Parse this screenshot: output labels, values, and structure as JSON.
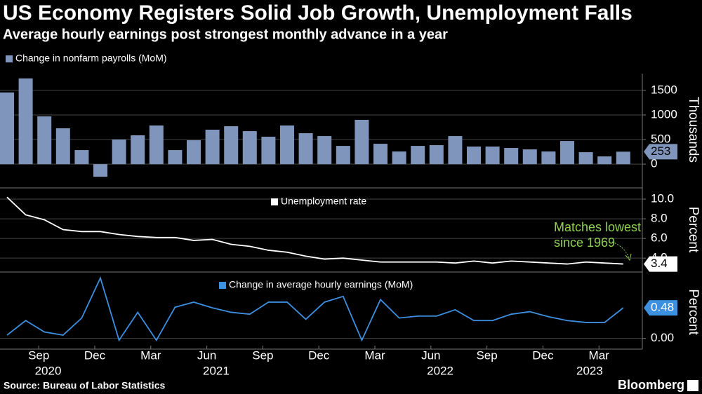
{
  "title": "US Economy Registers Solid Job Growth, Unemployment Falls",
  "subtitle": "Average hourly earnings post strongest monthly advance in a year",
  "source": "Source: Bureau of Labor Statistics",
  "brand": "Bloomberg",
  "chart_data": [
    {
      "type": "bar",
      "y_label": "Thousands",
      "series": [
        {
          "name": "Change in nonfarm payrolls (MoM)",
          "color": "#7f95bb",
          "values": [
            1457,
            1743,
            971,
            729,
            286,
            -257,
            500,
            586,
            786,
            286,
            486,
            700,
            771,
            671,
            557,
            786,
            629,
            571,
            371,
            900,
            414,
            257,
            371,
            386,
            571,
            357,
            357,
            329,
            300,
            257,
            471,
            243,
            157,
            253
          ]
        }
      ],
      "ylim": [
        -440,
        1840
      ],
      "yticks": [
        0,
        500,
        1000,
        1500
      ],
      "grid": true
    },
    {
      "type": "line",
      "y_label": "Percent",
      "series": [
        {
          "name": "Unemployment rate",
          "color": "#ffffff",
          "values": [
            10.2,
            8.4,
            7.9,
            6.9,
            6.7,
            6.7,
            6.4,
            6.2,
            6.1,
            6.1,
            5.8,
            5.9,
            5.4,
            5.2,
            4.8,
            4.6,
            4.2,
            3.9,
            4.0,
            3.8,
            3.6,
            3.6,
            3.6,
            3.6,
            3.5,
            3.7,
            3.5,
            3.7,
            3.6,
            3.5,
            3.4,
            3.6,
            3.5,
            3.4
          ]
        }
      ],
      "ylim": [
        2.8,
        11
      ],
      "yticks": [
        {
          "value": 4,
          "label": "4.0"
        },
        {
          "value": 6,
          "label": "6.0"
        },
        {
          "value": 8,
          "label": "8.0"
        },
        {
          "value": 10,
          "label": "10.0"
        }
      ],
      "grid": true,
      "annotation": [
        "Matches lowest",
        "since 1969"
      ],
      "annotation_color": "#8fd14f"
    },
    {
      "type": "line",
      "y_label": "Percent",
      "series": [
        {
          "name": "Change in average hourly earnings (MoM)",
          "color": "#3d8fe0",
          "values": [
            0.05,
            0.28,
            0.1,
            0.05,
            0.32,
            0.95,
            -0.03,
            0.41,
            -0.03,
            0.49,
            0.57,
            0.48,
            0.41,
            0.38,
            0.57,
            0.57,
            0.3,
            0.57,
            0.66,
            -0.03,
            0.61,
            0.32,
            0.35,
            0.35,
            0.45,
            0.28,
            0.28,
            0.38,
            0.42,
            0.34,
            0.28,
            0.25,
            0.25,
            0.48
          ]
        }
      ],
      "ylim": [
        -0.17,
        1.0
      ],
      "yticks": [
        {
          "value": 0,
          "label": "0.00"
        }
      ],
      "grid": true,
      "categories": [
        null,
        null,
        "Sep",
        null,
        null,
        "Dec",
        null,
        null,
        "Mar",
        null,
        null,
        "Jun",
        null,
        null,
        "Sep",
        null,
        null,
        "Dec",
        null,
        null,
        "Mar",
        null,
        null,
        "Jun",
        null,
        null,
        "Sep",
        null,
        null,
        "Dec",
        null,
        null,
        "Mar",
        null
      ],
      "year_labels": [
        "2020",
        "2021",
        "2022",
        "2023"
      ]
    }
  ]
}
